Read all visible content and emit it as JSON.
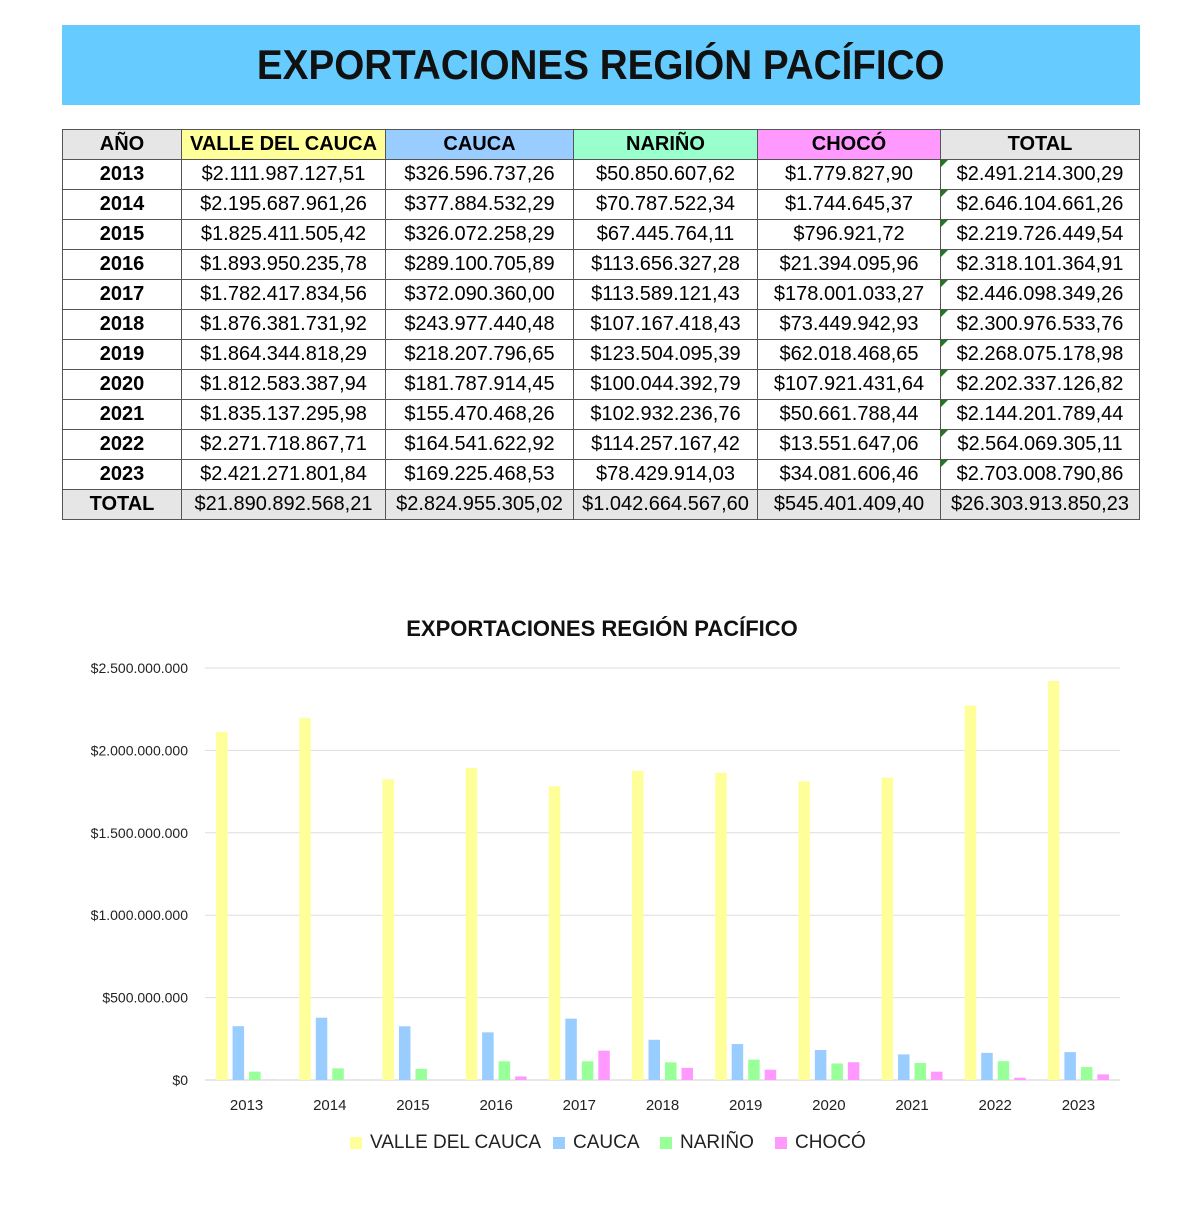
{
  "banner_title": "EXPORTACIONES REGIÓN PACÍFICO",
  "table": {
    "headers": [
      {
        "label": "AÑO",
        "bg": "#e6e6e6"
      },
      {
        "label": "VALLE DEL CAUCA",
        "bg": "#ffff99"
      },
      {
        "label": "CAUCA",
        "bg": "#99ccff"
      },
      {
        "label": "NARIÑO",
        "bg": "#99ffcc"
      },
      {
        "label": "CHOCÓ",
        "bg": "#ff99ff"
      },
      {
        "label": "TOTAL",
        "bg": "#e6e6e6"
      }
    ],
    "rows": [
      [
        "2013",
        "$2.111.987.127,51",
        "$326.596.737,26",
        "$50.850.607,62",
        "$1.779.827,90",
        "$2.491.214.300,29"
      ],
      [
        "2014",
        "$2.195.687.961,26",
        "$377.884.532,29",
        "$70.787.522,34",
        "$1.744.645,37",
        "$2.646.104.661,26"
      ],
      [
        "2015",
        "$1.825.411.505,42",
        "$326.072.258,29",
        "$67.445.764,11",
        "$796.921,72",
        "$2.219.726.449,54"
      ],
      [
        "2016",
        "$1.893.950.235,78",
        "$289.100.705,89",
        "$113.656.327,28",
        "$21.394.095,96",
        "$2.318.101.364,91"
      ],
      [
        "2017",
        "$1.782.417.834,56",
        "$372.090.360,00",
        "$113.589.121,43",
        "$178.001.033,27",
        "$2.446.098.349,26"
      ],
      [
        "2018",
        "$1.876.381.731,92",
        "$243.977.440,48",
        "$107.167.418,43",
        "$73.449.942,93",
        "$2.300.976.533,76"
      ],
      [
        "2019",
        "$1.864.344.818,29",
        "$218.207.796,65",
        "$123.504.095,39",
        "$62.018.468,65",
        "$2.268.075.178,98"
      ],
      [
        "2020",
        "$1.812.583.387,94",
        "$181.787.914,45",
        "$100.044.392,79",
        "$107.921.431,64",
        "$2.202.337.126,82"
      ],
      [
        "2021",
        "$1.835.137.295,98",
        "$155.470.468,26",
        "$102.932.236,76",
        "$50.661.788,44",
        "$2.144.201.789,44"
      ],
      [
        "2022",
        "$2.271.718.867,71",
        "$164.541.622,92",
        "$114.257.167,42",
        "$13.551.647,06",
        "$2.564.069.305,11"
      ],
      [
        "2023",
        "$2.421.271.801,84",
        "$169.225.468,53",
        "$78.429.914,03",
        "$34.081.606,46",
        "$2.703.008.790,86"
      ]
    ],
    "total_row": [
      "TOTAL",
      "$21.890.892.568,21",
      "$2.824.955.305,02",
      "$1.042.664.567,60",
      "$545.401.409,40",
      "$26.303.913.850,23"
    ]
  },
  "chart_data": {
    "type": "bar",
    "title": "EXPORTACIONES REGIÓN PACÍFICO",
    "categories": [
      "2013",
      "2014",
      "2015",
      "2016",
      "2017",
      "2018",
      "2019",
      "2020",
      "2021",
      "2022",
      "2023"
    ],
    "series": [
      {
        "name": "VALLE DEL CAUCA",
        "color": "#ffff99",
        "values": [
          2111987127.51,
          2195687961.26,
          1825411505.42,
          1893950235.78,
          1782417834.56,
          1876381731.92,
          1864344818.29,
          1812583387.94,
          1835137295.98,
          2271718867.71,
          2421271801.84
        ]
      },
      {
        "name": "CAUCA",
        "color": "#99ccff",
        "values": [
          326596737.26,
          377884532.29,
          326072258.29,
          289100705.89,
          372090360.0,
          243977440.48,
          218207796.65,
          181787914.45,
          155470468.26,
          164541622.92,
          169225468.53
        ]
      },
      {
        "name": "NARIÑO",
        "color": "#99ff99",
        "values": [
          50850607.62,
          70787522.34,
          67445764.11,
          113656327.28,
          113589121.43,
          107167418.43,
          123504095.39,
          100044392.79,
          102932236.76,
          114257167.42,
          78429914.03
        ]
      },
      {
        "name": "CHOCÓ",
        "color": "#ff99ff",
        "values": [
          1779827.9,
          1744645.37,
          796921.72,
          21394095.96,
          178001033.27,
          73449942.93,
          62018468.65,
          107921431.64,
          50661788.44,
          13551647.06,
          34081606.46
        ]
      }
    ],
    "ylim": [
      0,
      2500000000
    ],
    "yticks": [
      0,
      500000000,
      1000000000,
      1500000000,
      2000000000,
      2500000000
    ],
    "ytick_labels": [
      "$0",
      "$500.000.000",
      "$1.000.000.000",
      "$1.500.000.000",
      "$2.000.000.000",
      "$2.500.000.000"
    ],
    "grid": true,
    "legend_position": "bottom"
  }
}
